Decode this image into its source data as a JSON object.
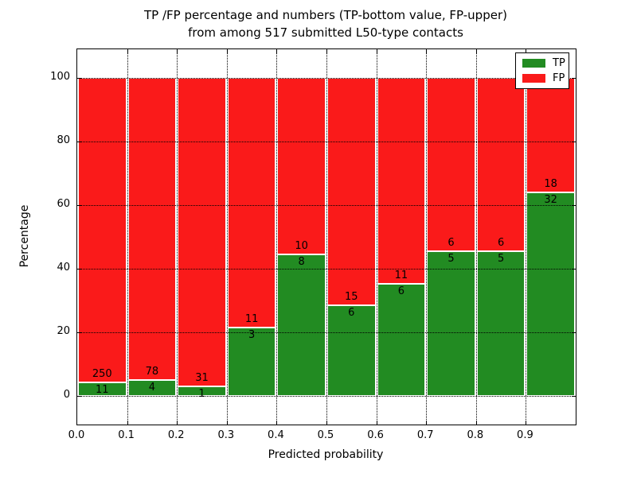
{
  "chart": {
    "title_line1": "TP /FP percentage and numbers (TP-bottom value, FP-upper)",
    "title_line2": "from among 517 submitted L50-type contacts"
  },
  "chart_data": {
    "type": "bar",
    "stacked": true,
    "normalized": "percent",
    "title": "TP /FP percentage and numbers (TP-bottom value, FP-upper)\nfrom among 517 submitted L50-type contacts",
    "xlabel": "Predicted probability",
    "ylabel": "Percentage",
    "total_submitted": 517,
    "bin_width": 0.1,
    "categories": [
      "0.0",
      "0.1",
      "0.2",
      "0.3",
      "0.4",
      "0.5",
      "0.6",
      "0.7",
      "0.8",
      "0.9"
    ],
    "series": [
      {
        "name": "TP",
        "color": "#228b22",
        "values": [
          11,
          4,
          1,
          3,
          8,
          6,
          6,
          5,
          5,
          32
        ]
      },
      {
        "name": "FP",
        "color": "#fa1a1a",
        "values": [
          250,
          78,
          31,
          11,
          10,
          15,
          11,
          6,
          6,
          18
        ]
      }
    ],
    "tp_percent_per_bin": [
      4.2,
      4.9,
      3.1,
      21.4,
      44.4,
      28.6,
      35.3,
      45.5,
      45.5,
      64.0
    ],
    "x_ticks": [
      "0.0",
      "0.1",
      "0.2",
      "0.3",
      "0.4",
      "0.5",
      "0.6",
      "0.7",
      "0.8",
      "0.9"
    ],
    "y_ticks": [
      0,
      20,
      40,
      60,
      80,
      100
    ],
    "xlim": [
      0.0,
      1.0
    ],
    "ylim": [
      -9,
      109
    ],
    "grid": "dotted",
    "legend_position": "upper right"
  }
}
